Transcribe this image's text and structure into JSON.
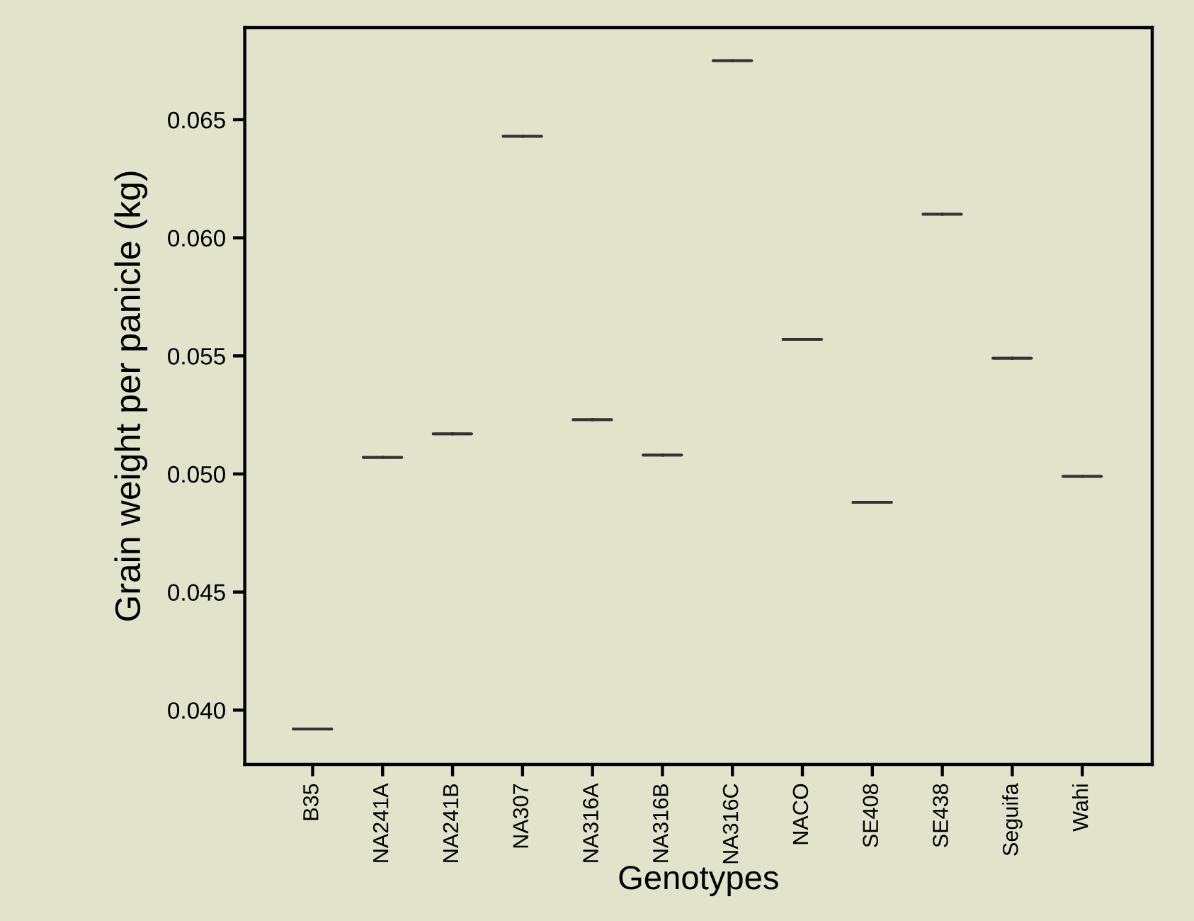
{
  "chart_data": {
    "type": "box",
    "xlabel": "Genotypes",
    "ylabel": "Grain weight per panicle (kg)",
    "categories": [
      "B35",
      "NA241A",
      "NA241B",
      "NA307",
      "NA316A",
      "NA316B",
      "NA316C",
      "NACO",
      "SE408",
      "SE438",
      "Seguifa",
      "Wahi"
    ],
    "boxes": [
      {
        "low": 0.0392,
        "q1": 0.0392,
        "median": 0.0392,
        "q3": 0.0392,
        "high": 0.0392
      },
      {
        "low": 0.0507,
        "q1": 0.0507,
        "median": 0.0507,
        "q3": 0.0507,
        "high": 0.0507
      },
      {
        "low": 0.0517,
        "q1": 0.0517,
        "median": 0.0517,
        "q3": 0.0517,
        "high": 0.0517
      },
      {
        "low": 0.0643,
        "q1": 0.0643,
        "median": 0.0643,
        "q3": 0.0643,
        "high": 0.0643
      },
      {
        "low": 0.0523,
        "q1": 0.0523,
        "median": 0.0523,
        "q3": 0.0523,
        "high": 0.0523
      },
      {
        "low": 0.0508,
        "q1": 0.0508,
        "median": 0.0508,
        "q3": 0.0508,
        "high": 0.0508
      },
      {
        "low": 0.0675,
        "q1": 0.0675,
        "median": 0.0675,
        "q3": 0.0675,
        "high": 0.0675
      },
      {
        "low": 0.0557,
        "q1": 0.0557,
        "median": 0.0557,
        "q3": 0.0557,
        "high": 0.0557
      },
      {
        "low": 0.0488,
        "q1": 0.0488,
        "median": 0.0488,
        "q3": 0.0488,
        "high": 0.0488
      },
      {
        "low": 0.061,
        "q1": 0.061,
        "median": 0.061,
        "q3": 0.061,
        "high": 0.061
      },
      {
        "low": 0.0549,
        "q1": 0.0549,
        "median": 0.0549,
        "q3": 0.0549,
        "high": 0.0549
      },
      {
        "low": 0.0499,
        "q1": 0.0499,
        "median": 0.0499,
        "q3": 0.0499,
        "high": 0.0499
      }
    ],
    "color": "#333333",
    "ylim": [
      0.0377,
      0.0689
    ],
    "yticks": [
      {
        "value": 0.04,
        "label": "0.040"
      },
      {
        "value": 0.045,
        "label": "0.045"
      },
      {
        "value": 0.05,
        "label": "0.050"
      },
      {
        "value": 0.055,
        "label": "0.055"
      },
      {
        "value": 0.06,
        "label": "0.060"
      },
      {
        "value": 0.065,
        "label": "0.065"
      }
    ],
    "grid": false,
    "legend": false
  }
}
